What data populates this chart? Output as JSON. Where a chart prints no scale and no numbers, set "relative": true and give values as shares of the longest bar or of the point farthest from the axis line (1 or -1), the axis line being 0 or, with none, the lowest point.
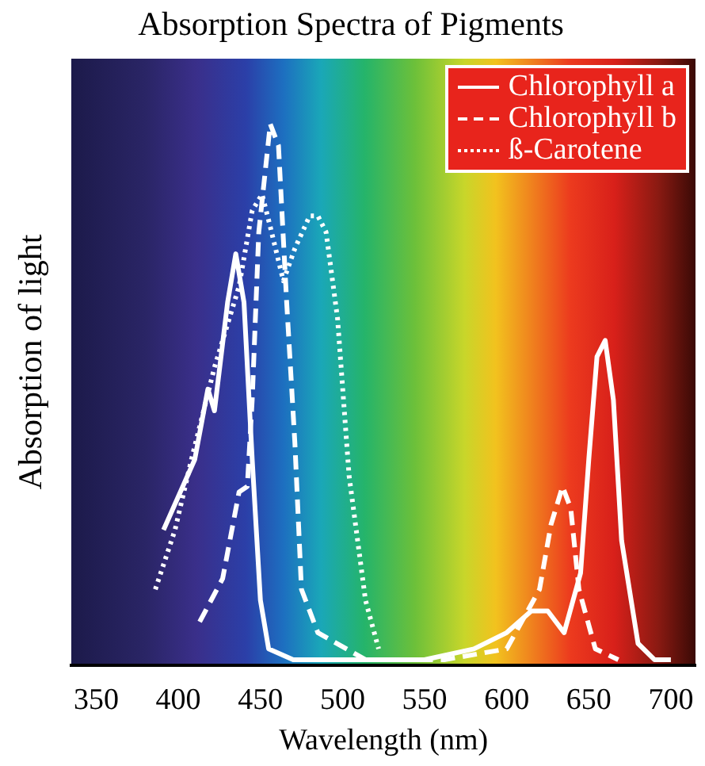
{
  "chart_data": {
    "type": "line",
    "title": "Absorption Spectra of Pigments",
    "xlabel": "Wavelength (nm)",
    "ylabel": "Absorption of light",
    "relative": true,
    "xlim": [
      335,
      715
    ],
    "xticks": [
      350,
      400,
      450,
      500,
      550,
      600,
      650,
      700
    ],
    "grid": false,
    "legend": "top right",
    "marker": "none",
    "series": [
      {
        "name": "Chlorophyll a",
        "color": "#ffffff",
        "line_style": "solid",
        "x": [
          391,
          410,
          418,
          422,
          430,
          435,
          440,
          445,
          450,
          455,
          470,
          500,
          550,
          580,
          600,
          615,
          625,
          635,
          645,
          650,
          655,
          660,
          665,
          670,
          680,
          690,
          700
        ],
        "values": [
          0.25,
          0.38,
          0.51,
          0.47,
          0.67,
          0.76,
          0.67,
          0.38,
          0.12,
          0.03,
          0.01,
          0.01,
          0.01,
          0.03,
          0.06,
          0.1,
          0.1,
          0.06,
          0.17,
          0.38,
          0.57,
          0.6,
          0.49,
          0.23,
          0.04,
          0.01,
          0.01
        ]
      },
      {
        "name": "Chlorophyll b",
        "color": "#ffffff",
        "line_style": "dashed",
        "x": [
          413,
          427,
          437,
          442,
          445,
          449,
          456,
          461,
          466,
          471,
          475,
          485,
          514,
          562,
          600,
          620,
          627,
          634,
          639,
          644,
          654,
          668
        ],
        "values": [
          0.08,
          0.16,
          0.32,
          0.33,
          0.49,
          0.8,
          1.0,
          0.96,
          0.67,
          0.41,
          0.14,
          0.06,
          0.01,
          0.01,
          0.03,
          0.14,
          0.26,
          0.33,
          0.29,
          0.14,
          0.03,
          0.01
        ]
      },
      {
        "name": "ß-Carotene",
        "color": "#ffffff",
        "line_style": "dotted",
        "x": [
          386,
          398,
          408,
          422,
          437,
          445,
          451,
          456,
          464,
          471,
          480,
          485,
          490,
          497,
          504,
          514,
          522
        ],
        "values": [
          0.14,
          0.25,
          0.38,
          0.55,
          0.7,
          0.84,
          0.87,
          0.81,
          0.71,
          0.77,
          0.83,
          0.83,
          0.8,
          0.64,
          0.35,
          0.12,
          0.03
        ]
      }
    ]
  }
}
